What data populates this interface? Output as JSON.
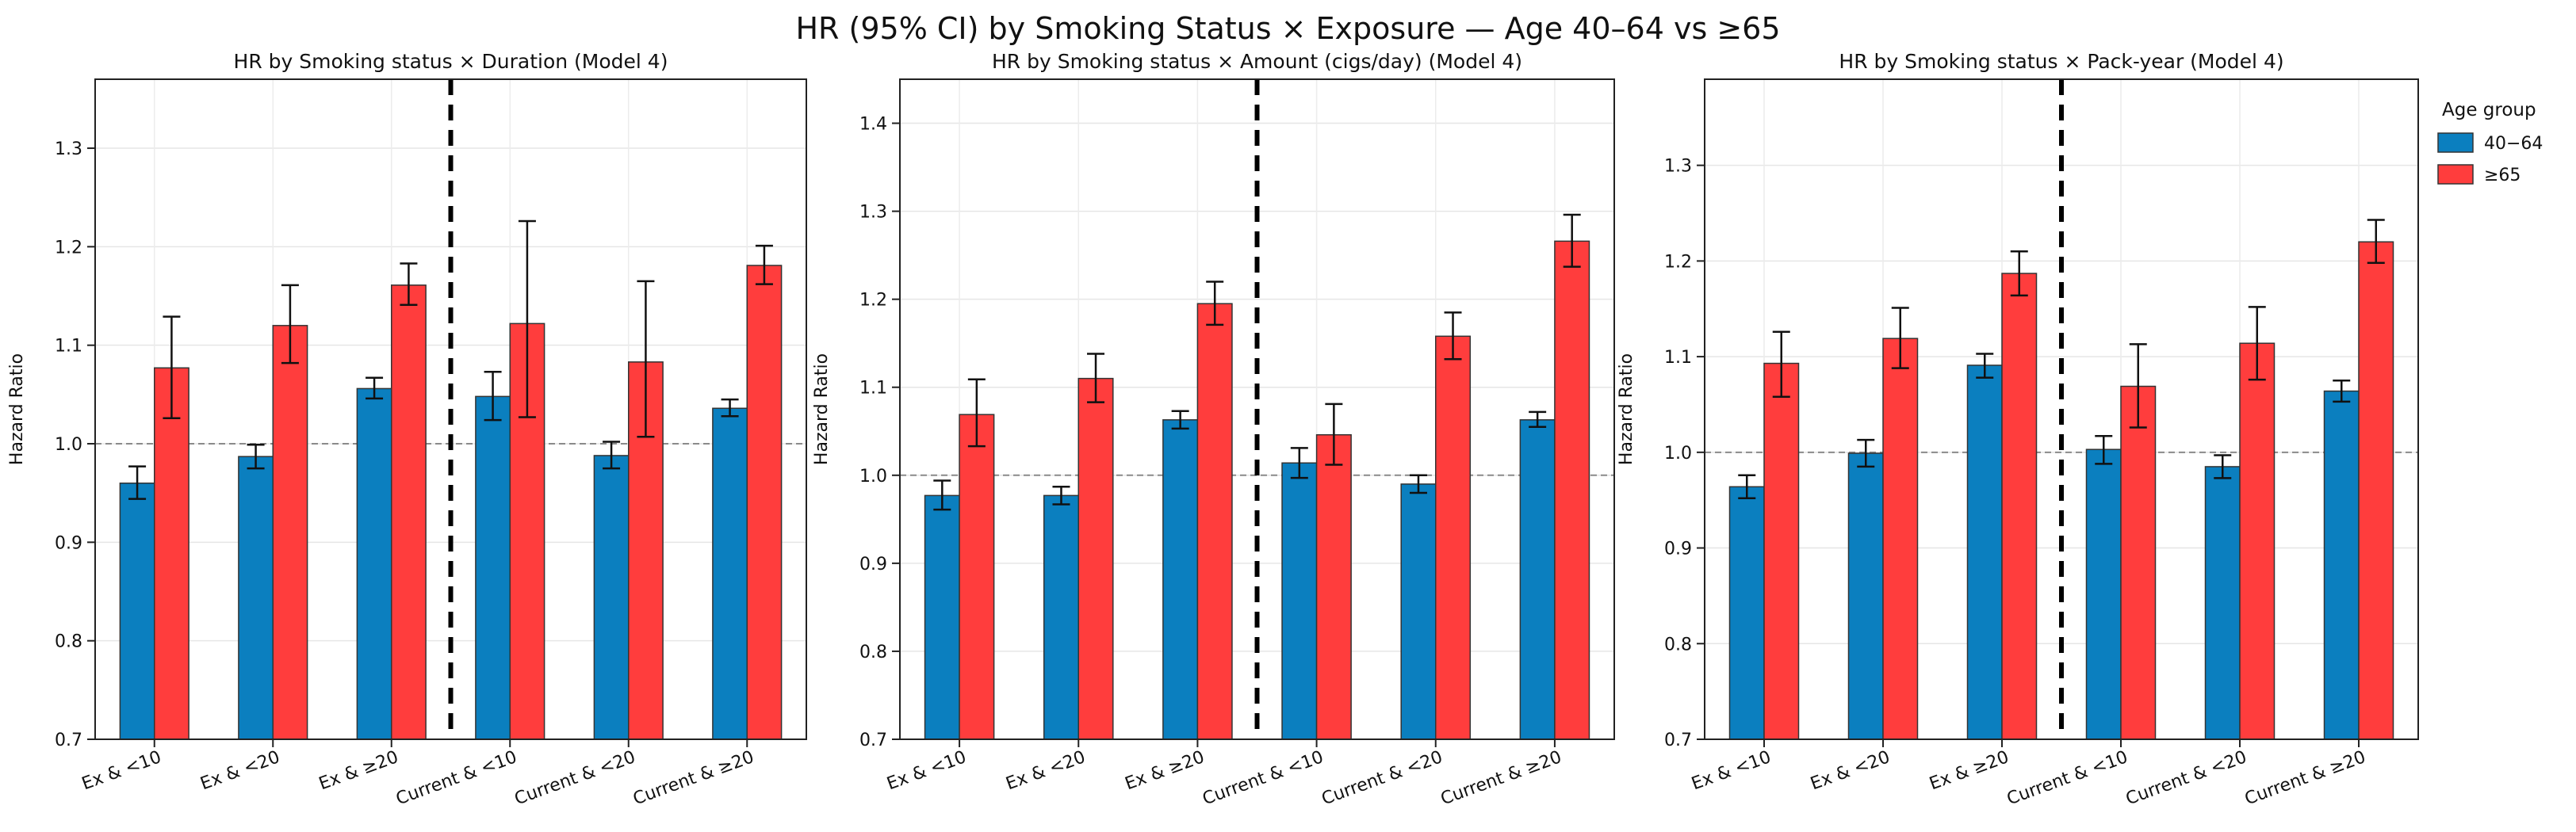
{
  "suptitle": "HR (95% CI) by Smoking Status × Exposure — Age 40–64 vs ≥65",
  "legend": {
    "title": "Age group",
    "entries": [
      {
        "label": "40−64",
        "color": "#0b7fbf"
      },
      {
        "label": "≥65",
        "color": "#ff3d3d"
      }
    ]
  },
  "chart_data": [
    {
      "type": "bar",
      "title": "HR by Smoking status × Duration (Model 4)",
      "xlabel": "",
      "ylabel": "Hazard Ratio",
      "ylim": [
        0.7,
        1.37
      ],
      "yticks": [
        0.7,
        0.8,
        0.9,
        1.0,
        1.1,
        1.2,
        1.3
      ],
      "reference_line": 1.0,
      "divider_after_index": 2,
      "categories": [
        "Ex & <10",
        "Ex & <20",
        "Ex & ≥20",
        "Current & <10",
        "Current & <20",
        "Current & ≥20"
      ],
      "series": [
        {
          "name": "40−64",
          "values": [
            0.96,
            0.987,
            1.056,
            1.048,
            0.988,
            1.036
          ],
          "ci_low": [
            0.944,
            0.975,
            1.046,
            1.024,
            0.975,
            1.028
          ],
          "ci_high": [
            0.977,
            0.999,
            1.067,
            1.073,
            1.002,
            1.045
          ]
        },
        {
          "name": "≥65",
          "values": [
            1.077,
            1.12,
            1.161,
            1.122,
            1.083,
            1.181
          ],
          "ci_low": [
            1.026,
            1.082,
            1.141,
            1.027,
            1.007,
            1.162
          ],
          "ci_high": [
            1.129,
            1.161,
            1.183,
            1.226,
            1.165,
            1.201
          ]
        }
      ]
    },
    {
      "type": "bar",
      "title": "HR by Smoking status × Amount (cigs/day) (Model 4)",
      "xlabel": "",
      "ylabel": "Hazard Ratio",
      "ylim": [
        0.7,
        1.45
      ],
      "yticks": [
        0.7,
        0.8,
        0.9,
        1.0,
        1.1,
        1.2,
        1.3,
        1.4
      ],
      "reference_line": 1.0,
      "divider_after_index": 2,
      "categories": [
        "Ex & <10",
        "Ex & <20",
        "Ex & ≥20",
        "Current & <10",
        "Current & <20",
        "Current & ≥20"
      ],
      "series": [
        {
          "name": "40−64",
          "values": [
            0.977,
            0.977,
            1.063,
            1.014,
            0.99,
            1.063
          ],
          "ci_low": [
            0.961,
            0.967,
            1.053,
            0.997,
            0.98,
            1.055
          ],
          "ci_high": [
            0.994,
            0.987,
            1.073,
            1.031,
            1.0,
            1.072
          ]
        },
        {
          "name": "≥65",
          "values": [
            1.069,
            1.11,
            1.195,
            1.046,
            1.158,
            1.266
          ],
          "ci_low": [
            1.033,
            1.083,
            1.171,
            1.012,
            1.132,
            1.237
          ],
          "ci_high": [
            1.109,
            1.138,
            1.22,
            1.081,
            1.185,
            1.296
          ]
        }
      ]
    },
    {
      "type": "bar",
      "title": "HR by Smoking status × Pack-year (Model 4)",
      "xlabel": "",
      "ylabel": "Hazard Ratio",
      "ylim": [
        0.7,
        1.39
      ],
      "yticks": [
        0.7,
        0.8,
        0.9,
        1.0,
        1.1,
        1.2,
        1.3
      ],
      "reference_line": 1.0,
      "divider_after_index": 2,
      "categories": [
        "Ex & <10",
        "Ex & <20",
        "Ex & ≥20",
        "Current & <10",
        "Current & <20",
        "Current & ≥20"
      ],
      "series": [
        {
          "name": "40−64",
          "values": [
            0.964,
            0.999,
            1.091,
            1.003,
            0.985,
            1.064
          ],
          "ci_low": [
            0.952,
            0.985,
            1.078,
            0.988,
            0.973,
            1.053
          ],
          "ci_high": [
            0.976,
            1.013,
            1.103,
            1.017,
            0.997,
            1.075
          ]
        },
        {
          "name": "≥65",
          "values": [
            1.093,
            1.119,
            1.187,
            1.069,
            1.114,
            1.22
          ],
          "ci_low": [
            1.058,
            1.088,
            1.164,
            1.026,
            1.076,
            1.198
          ],
          "ci_high": [
            1.126,
            1.151,
            1.21,
            1.113,
            1.152,
            1.243
          ]
        }
      ]
    }
  ]
}
